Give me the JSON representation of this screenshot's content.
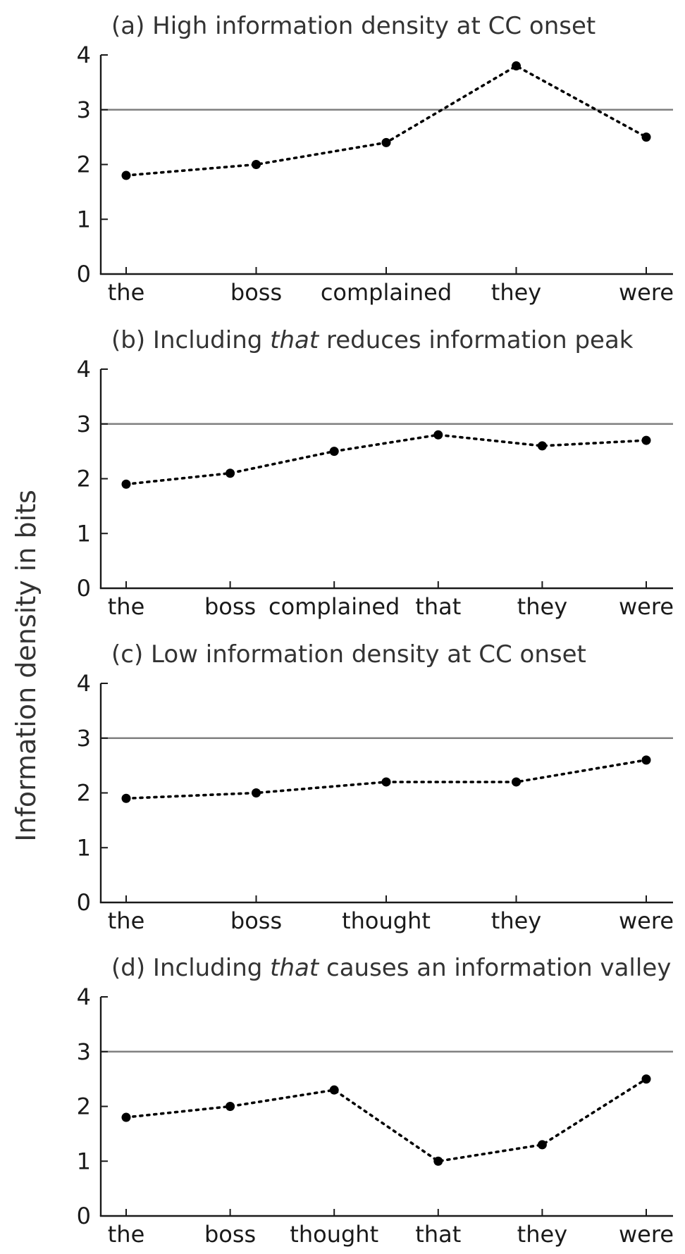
{
  "y_axis_label": "Information density in bits",
  "chart_data": [
    {
      "type": "line",
      "title_parts": [
        "(a) High information density at CC onset"
      ],
      "categories": [
        "the",
        "boss",
        "complained",
        "they",
        "were"
      ],
      "values": [
        1.8,
        2.0,
        2.4,
        3.8,
        2.5
      ],
      "threshold": 3,
      "ylim": [
        0,
        4
      ],
      "yticks": [
        0,
        1,
        2,
        3,
        4
      ]
    },
    {
      "type": "line",
      "title_parts": [
        "(b) Including ",
        "that",
        " reduces information peak"
      ],
      "categories": [
        "the",
        "boss",
        "complained",
        "that",
        "they",
        "were"
      ],
      "values": [
        1.9,
        2.1,
        2.5,
        2.8,
        2.6,
        2.7
      ],
      "threshold": 3,
      "ylim": [
        0,
        4
      ],
      "yticks": [
        0,
        1,
        2,
        3,
        4
      ]
    },
    {
      "type": "line",
      "title_parts": [
        "(c) Low information density at CC onset"
      ],
      "categories": [
        "the",
        "boss",
        "thought",
        "they",
        "were"
      ],
      "values": [
        1.9,
        2.0,
        2.2,
        2.2,
        2.6
      ],
      "threshold": 3,
      "ylim": [
        0,
        4
      ],
      "yticks": [
        0,
        1,
        2,
        3,
        4
      ]
    },
    {
      "type": "line",
      "title_parts": [
        "(d) Including ",
        "that",
        " causes an information valley"
      ],
      "categories": [
        "the",
        "boss",
        "thought",
        "that",
        "they",
        "were"
      ],
      "values": [
        1.8,
        2.0,
        2.3,
        1.0,
        1.3,
        2.5
      ],
      "threshold": 3,
      "ylim": [
        0,
        4
      ],
      "yticks": [
        0,
        1,
        2,
        3,
        4
      ]
    }
  ]
}
